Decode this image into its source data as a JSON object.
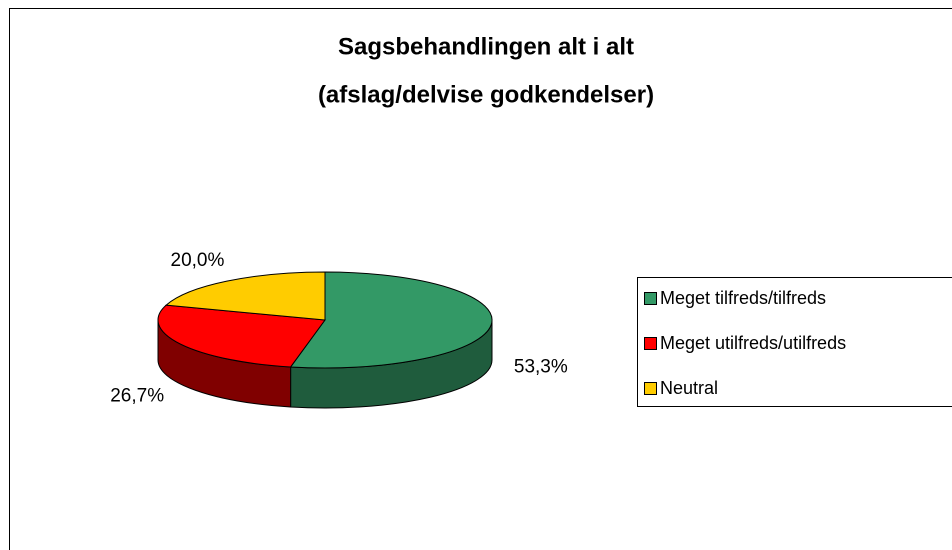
{
  "chart_data": {
    "type": "pie3d",
    "title": [
      "Sagsbehandlingen alt i alt",
      "(afslag/delvise godkendelser)"
    ],
    "categories": [
      "Meget tilfreds/tilfreds",
      "Meget utilfreds/utilfreds",
      "Neutral"
    ],
    "values": [
      53.3,
      26.7,
      20.0
    ],
    "value_labels": [
      "53,3%",
      "26,7%",
      "20,0%"
    ],
    "colors": [
      "#339966",
      "#ff0000",
      "#ffcc00"
    ],
    "side_colors": [
      "#1f5c3d",
      "#800000",
      "#997a00"
    ],
    "legend": "right"
  }
}
